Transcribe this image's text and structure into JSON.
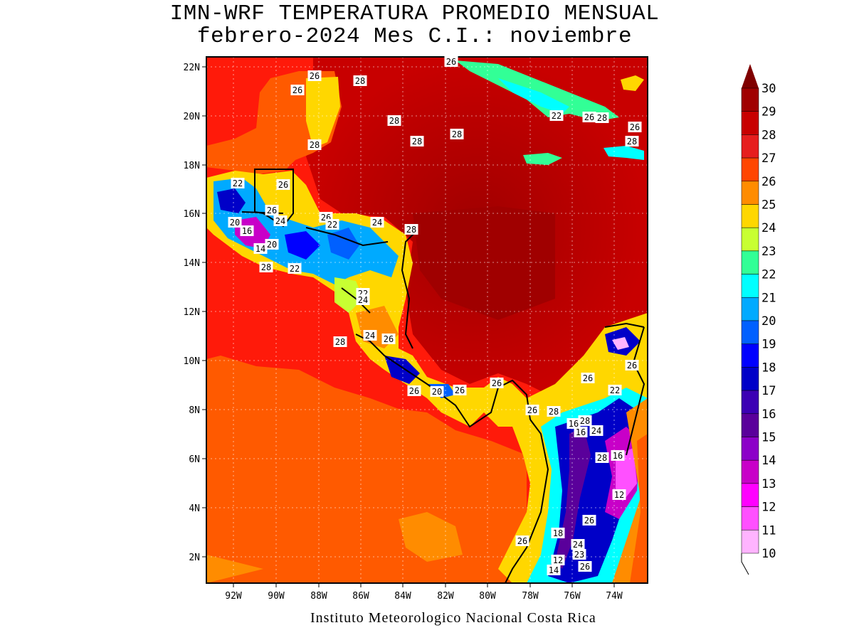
{
  "title": {
    "line1": "IMN-WRF  TEMPERATURA PROMEDIO MENSUAL",
    "line2": "febrero-2024 Mes C.I.: noviembre"
  },
  "footer": "Instituto Meteorologico Nacional Costa Rica",
  "axes": {
    "lon_ticks": [
      "92W",
      "90W",
      "88W",
      "86W",
      "84W",
      "82W",
      "80W",
      "78W",
      "76W",
      "74W"
    ],
    "lat_ticks": [
      "22N",
      "20N",
      "18N",
      "16N",
      "14N",
      "12N",
      "10N",
      "8N",
      "6N",
      "4N",
      "2N"
    ]
  },
  "colorbar": {
    "labels": [
      "30",
      "29",
      "28",
      "27",
      "26",
      "25",
      "24",
      "23",
      "22",
      "21",
      "20",
      "19",
      "18",
      "17",
      "16",
      "15",
      "14",
      "13",
      "12",
      "11",
      "10"
    ],
    "colors": [
      "#a00000",
      "#c80000",
      "#e61e1e",
      "#ff4600",
      "#ff8c00",
      "#ffd700",
      "#c8ff32",
      "#32ff96",
      "#00ffff",
      "#00aaff",
      "#0060ff",
      "#0000ff",
      "#0000c8",
      "#3c00b4",
      "#5a009b",
      "#8c00c8",
      "#c800c8",
      "#ff00ff",
      "#ff50ff",
      "#ffb4ff"
    ],
    "top_arrow_color": "#800000"
  },
  "contour_labels": [
    "26",
    "28",
    "26",
    "26",
    "28",
    "28",
    "28",
    "22",
    "26",
    "28",
    "26",
    "28",
    "28",
    "22",
    "26",
    "26",
    "26",
    "22",
    "24",
    "28",
    "20",
    "16",
    "24",
    "20",
    "14",
    "28",
    "22",
    "22",
    "24",
    "24",
    "26",
    "28",
    "26",
    "26",
    "20",
    "26",
    "26",
    "22",
    "28",
    "26",
    "28",
    "26",
    "16",
    "16",
    "24",
    "28",
    "16",
    "12",
    "26",
    "18",
    "24",
    "26",
    "14",
    "12",
    "23",
    "26"
  ]
}
